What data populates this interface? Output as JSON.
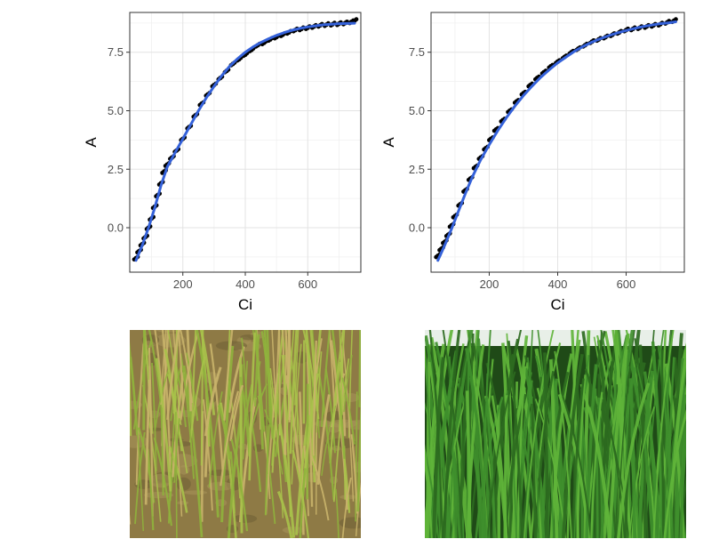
{
  "chart_data": [
    {
      "type": "scatter",
      "xlabel": "Ci",
      "ylabel": "A",
      "xlim": [
        30,
        770
      ],
      "ylim": [
        -1.9,
        9.2
      ],
      "xticks": [
        "200",
        "400",
        "600"
      ],
      "xtick_values": [
        200,
        400,
        600
      ],
      "yticks": [
        "0.0",
        "2.5",
        "5.0",
        "7.5"
      ],
      "ytick_values": [
        0,
        2.5,
        5,
        7.5
      ],
      "grid": true,
      "series": [
        {
          "kind": "points",
          "color": "#000000",
          "x": [
            50,
            60,
            70,
            80,
            90,
            100,
            110,
            120,
            130,
            140,
            150,
            165,
            180,
            200,
            220,
            240,
            260,
            280,
            300,
            320,
            340,
            360,
            380,
            400,
            420,
            440,
            460,
            480,
            500,
            520,
            540,
            560,
            580,
            600,
            620,
            640,
            660,
            680,
            700,
            720,
            740,
            750
          ],
          "y": [
            -1.3,
            -1.0,
            -0.7,
            -0.4,
            0.0,
            0.4,
            0.9,
            1.4,
            1.9,
            2.4,
            2.7,
            3.0,
            3.3,
            3.8,
            4.3,
            4.8,
            5.3,
            5.7,
            6.1,
            6.4,
            6.7,
            7.0,
            7.2,
            7.4,
            7.6,
            7.8,
            7.9,
            8.05,
            8.15,
            8.25,
            8.35,
            8.45,
            8.5,
            8.55,
            8.6,
            8.65,
            8.68,
            8.7,
            8.72,
            8.75,
            8.8,
            8.85
          ]
        },
        {
          "kind": "fit",
          "color": "#3461d9",
          "x": [
            50,
            70,
            90,
            110,
            130,
            150,
            175,
            200,
            225,
            250,
            275,
            300,
            325,
            350,
            375,
            400,
            425,
            450,
            475,
            500,
            525,
            550,
            575,
            600,
            625,
            650,
            675,
            700,
            725,
            750
          ],
          "y": [
            -1.4,
            -0.75,
            0.0,
            0.85,
            1.8,
            2.6,
            3.2,
            3.8,
            4.4,
            5.0,
            5.55,
            6.05,
            6.5,
            6.9,
            7.22,
            7.5,
            7.73,
            7.92,
            8.08,
            8.22,
            8.34,
            8.44,
            8.52,
            8.58,
            8.63,
            8.67,
            8.7,
            8.72,
            8.73,
            8.74
          ]
        }
      ]
    },
    {
      "type": "scatter",
      "xlabel": "Ci",
      "ylabel": "A",
      "xlim": [
        30,
        770
      ],
      "ylim": [
        -1.9,
        9.2
      ],
      "xticks": [
        "200",
        "400",
        "600"
      ],
      "xtick_values": [
        200,
        400,
        600
      ],
      "yticks": [
        "0.0",
        "2.5",
        "5.0",
        "7.5"
      ],
      "ytick_values": [
        0,
        2.5,
        5,
        7.5
      ],
      "grid": true,
      "series": [
        {
          "kind": "points",
          "color": "#000000",
          "x": [
            50,
            60,
            70,
            80,
            90,
            100,
            115,
            130,
            145,
            160,
            175,
            190,
            205,
            220,
            240,
            260,
            280,
            300,
            320,
            340,
            360,
            380,
            400,
            420,
            440,
            460,
            480,
            500,
            520,
            540,
            560,
            580,
            600,
            620,
            640,
            660,
            680,
            700,
            720,
            740
          ],
          "y": [
            -1.2,
            -0.9,
            -0.6,
            -0.3,
            0.1,
            0.5,
            1.0,
            1.6,
            2.1,
            2.6,
            3.0,
            3.4,
            3.8,
            4.2,
            4.6,
            5.0,
            5.4,
            5.75,
            6.1,
            6.4,
            6.65,
            6.9,
            7.1,
            7.3,
            7.5,
            7.65,
            7.8,
            7.95,
            8.05,
            8.15,
            8.25,
            8.35,
            8.45,
            8.5,
            8.55,
            8.6,
            8.65,
            8.7,
            8.78,
            8.85
          ]
        },
        {
          "kind": "fit",
          "color": "#3461d9",
          "x": [
            50,
            70,
            90,
            110,
            130,
            150,
            175,
            200,
            225,
            250,
            275,
            300,
            325,
            350,
            375,
            400,
            425,
            450,
            475,
            500,
            525,
            550,
            575,
            600,
            625,
            650,
            675,
            700,
            725,
            745
          ],
          "y": [
            -1.4,
            -0.75,
            -0.05,
            0.7,
            1.45,
            2.15,
            2.9,
            3.55,
            4.15,
            4.7,
            5.2,
            5.65,
            6.05,
            6.42,
            6.75,
            7.05,
            7.3,
            7.55,
            7.75,
            7.93,
            8.08,
            8.21,
            8.33,
            8.43,
            8.52,
            8.6,
            8.66,
            8.72,
            8.76,
            8.8
          ]
        }
      ]
    }
  ],
  "photos": [
    {
      "subject": "sparse-yellowish-rice-seedlings",
      "palette": {
        "soil": "#8e7a45",
        "leaf": "#a8c24a",
        "dry": "#c9b46a"
      }
    },
    {
      "subject": "dense-green-rice-plants",
      "palette": {
        "sky": "#e8efe8",
        "leaf": "#3f8f2c",
        "dark": "#1f4a17"
      }
    }
  ]
}
